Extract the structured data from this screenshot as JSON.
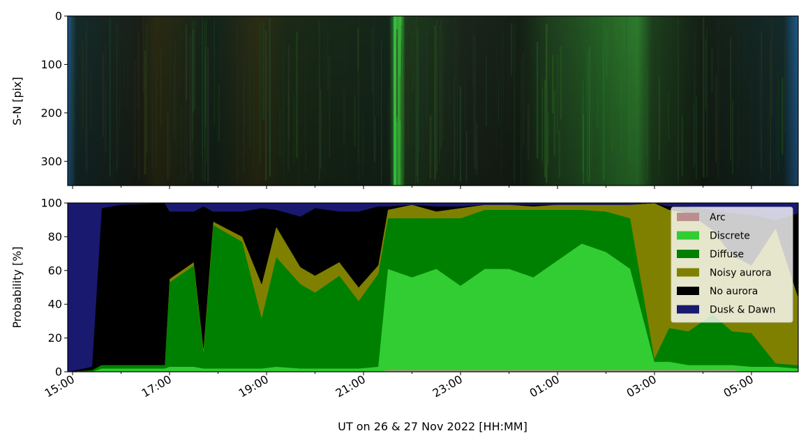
{
  "chart_data": [
    {
      "type": "heatmap",
      "title": "",
      "xlabel": "",
      "ylabel": "S-N [pix]",
      "ylim": [
        350,
        0
      ],
      "yticks": [
        0,
        100,
        200,
        300
      ],
      "x_start": "15:00",
      "x_end": "06:00",
      "description_colors": [
        "#0e1a14",
        "#143a18",
        "#2a7a2a",
        "#3a3a18",
        "#1e5a8c"
      ]
    },
    {
      "type": "area",
      "title": "",
      "xlabel": "UT on 26 & 27 Nov 2022 [HH:MM]",
      "ylabel": "Probability [%]",
      "ylim": [
        0,
        100
      ],
      "yticks": [
        0,
        20,
        40,
        60,
        80,
        100
      ],
      "xticks": [
        "15:00",
        "17:00",
        "19:00",
        "21:00",
        "23:00",
        "01:00",
        "03:00",
        "05:00"
      ],
      "legend_position": "top-right",
      "x_hours": [
        15.0,
        15.4,
        15.6,
        16.0,
        16.9,
        17.0,
        17.5,
        17.7,
        17.9,
        18.5,
        18.9,
        19.2,
        19.7,
        20.0,
        20.5,
        20.9,
        21.3,
        21.5,
        22.0,
        22.5,
        23.0,
        23.5,
        24.0,
        24.5,
        25.0,
        25.5,
        26.0,
        26.5,
        27.0,
        27.3,
        27.7,
        28.2,
        28.6,
        29.0,
        29.5,
        29.9
      ],
      "series": [
        {
          "name": "Arc",
          "color": "#bc8f8f",
          "values": [
            0,
            0,
            0,
            0,
            0,
            0,
            0,
            0,
            0,
            0,
            0,
            0,
            0,
            0,
            0,
            0,
            0,
            1,
            1,
            1,
            1,
            1,
            1,
            1,
            1,
            1,
            1,
            1,
            1,
            1,
            1,
            1,
            1,
            0,
            0,
            0
          ]
        },
        {
          "name": "Discrete",
          "color": "#32cd32",
          "values": [
            0,
            0,
            2,
            2,
            2,
            3,
            3,
            2,
            2,
            2,
            2,
            3,
            2,
            2,
            2,
            2,
            3,
            60,
            55,
            60,
            50,
            60,
            60,
            55,
            65,
            75,
            70,
            60,
            5,
            5,
            3,
            3,
            3,
            3,
            3,
            2
          ]
        },
        {
          "name": "Diffuse",
          "color": "#008000",
          "values": [
            0,
            1,
            2,
            2,
            2,
            50,
            60,
            10,
            85,
            75,
            30,
            65,
            50,
            45,
            55,
            40,
            55,
            30,
            35,
            30,
            40,
            35,
            35,
            40,
            30,
            20,
            24,
            30,
            2,
            20,
            20,
            30,
            20,
            20,
            2,
            2
          ]
        },
        {
          "name": "Noisy aurora",
          "color": "#808000",
          "values": [
            0,
            0,
            0,
            0,
            0,
            2,
            2,
            2,
            2,
            3,
            20,
            18,
            10,
            10,
            8,
            8,
            5,
            5,
            8,
            4,
            6,
            3,
            3,
            2,
            3,
            3,
            4,
            8,
            93,
            70,
            70,
            50,
            45,
            40,
            80,
            40
          ]
        },
        {
          "name": "No aurora",
          "color": "#000000",
          "values": [
            0,
            2,
            93,
            95,
            96,
            40,
            30,
            84,
            6,
            15,
            45,
            10,
            30,
            40,
            30,
            45,
            35,
            2,
            0,
            3,
            1,
            0,
            0,
            1,
            0,
            0,
            0,
            0,
            0,
            2,
            4,
            12,
            25,
            30,
            5,
            50
          ]
        },
        {
          "name": "Dusk & Dawn",
          "color": "#191970",
          "values": [
            100,
            97,
            3,
            1,
            0,
            5,
            5,
            2,
            5,
            5,
            3,
            4,
            8,
            3,
            5,
            5,
            2,
            2,
            1,
            2,
            2,
            1,
            1,
            1,
            1,
            1,
            1,
            1,
            0,
            2,
            2,
            4,
            6,
            7,
            10,
            6
          ]
        }
      ]
    }
  ]
}
